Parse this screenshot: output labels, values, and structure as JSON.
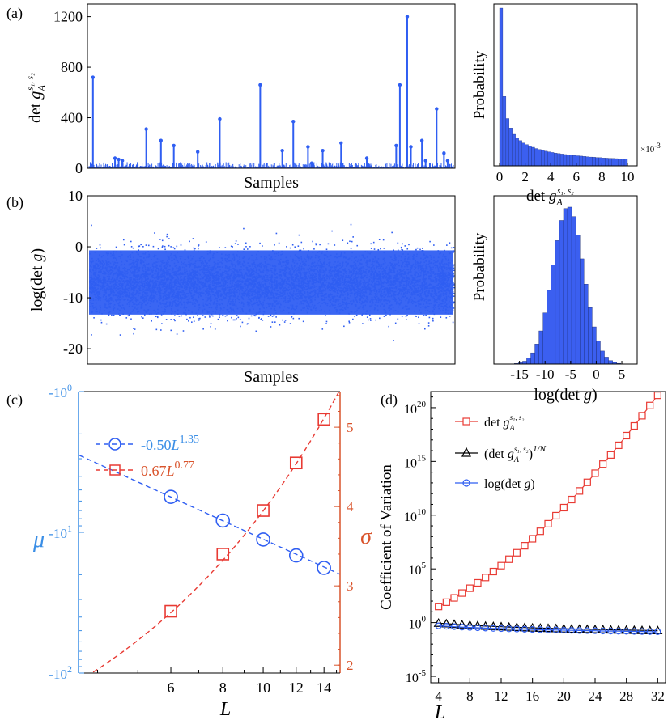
{
  "panels": {
    "a": "(a)",
    "b": "(b)",
    "c": "(c)",
    "d": "(d)"
  },
  "colors": {
    "blue": "#2f5ef2",
    "red": "#e83a33",
    "cyan": "#3a8ee6",
    "orange": "#d9532b",
    "black": "#000000",
    "hist": "#3b5ff0"
  },
  "chart_data": [
    {
      "id": "a_main",
      "type": "scatter",
      "xlabel": "Samples",
      "ylabel": "det g_A^{s1,s2}",
      "ylim": [
        0,
        1300
      ],
      "yticks": [
        0,
        400,
        800,
        1200
      ],
      "x": [
        0.015,
        0.075,
        0.085,
        0.095,
        0.16,
        0.2,
        0.235,
        0.3,
        0.36,
        0.47,
        0.53,
        0.56,
        0.6,
        0.61,
        0.64,
        0.69,
        0.76,
        0.84,
        0.85,
        0.87,
        0.88,
        0.91,
        0.92,
        0.95,
        0.97,
        0.98
      ],
      "values": [
        720,
        80,
        70,
        60,
        310,
        220,
        180,
        130,
        390,
        660,
        140,
        370,
        170,
        40,
        140,
        200,
        80,
        180,
        660,
        1200,
        170,
        220,
        60,
        470,
        120,
        60
      ]
    },
    {
      "id": "a_hist",
      "type": "bar",
      "xlabel": "det g_A^{s1,s2}",
      "ylabel": "Probability",
      "xticks": [
        0,
        2,
        4,
        6,
        8,
        10
      ],
      "xscale_label": "×10",
      "xscale_exp": "-3",
      "xlim": [
        0,
        10
      ],
      "values": [
        1.0,
        0.44,
        0.3,
        0.24,
        0.2,
        0.175,
        0.16,
        0.145,
        0.135,
        0.125,
        0.118,
        0.11,
        0.104,
        0.098,
        0.093,
        0.089,
        0.085,
        0.081,
        0.078,
        0.075,
        0.072,
        0.07,
        0.068,
        0.066,
        0.064,
        0.062,
        0.06,
        0.058,
        0.056,
        0.055,
        0.053,
        0.052,
        0.05,
        0.049,
        0.048,
        0.047,
        0.046,
        0.045,
        0.044,
        0.043
      ]
    },
    {
      "id": "b_main",
      "type": "scatter",
      "xlabel": "Samples",
      "ylabel": "log(det g)",
      "ylim": [
        -23,
        10
      ],
      "yticks": [
        -20,
        -10,
        0,
        10
      ],
      "mean": -7.0,
      "sd": 3.0,
      "n_points": 7000
    },
    {
      "id": "b_hist",
      "type": "bar",
      "xlabel": "log(det g)",
      "ylabel": "Probability",
      "xlim": [
        -20,
        8
      ],
      "xticks": [
        -15,
        -10,
        -5,
        0,
        5
      ],
      "mean": -5.5,
      "sd": 3.0,
      "bin_width": 0.8
    },
    {
      "id": "c",
      "type": "scatter",
      "xlabel": "L",
      "xlim": [
        3.6,
        15.3
      ],
      "xticks": [
        6,
        8,
        10,
        12,
        14
      ],
      "left_axis": {
        "label": "μ",
        "scale": "log-negative",
        "ticks": [
          {
            "base": "-10",
            "exp": "0"
          },
          {
            "base": "-10",
            "exp": "1"
          },
          {
            "base": "-10",
            "exp": "2"
          }
        ]
      },
      "right_axis": {
        "label": "σ",
        "ylim": [
          1.9,
          5.45
        ],
        "ticks": [
          2,
          3,
          4,
          5
        ]
      },
      "series": [
        {
          "name_base": "-0.50",
          "name_var": "L",
          "name_exp": "1.35",
          "x": [
            6,
            8,
            10,
            12,
            14
          ],
          "values": [
            -5.6,
            -8.25,
            -11.25,
            -14.6,
            -17.9
          ],
          "fit_coef": -0.5,
          "fit_exp": 1.35,
          "axis": "left"
        },
        {
          "name_base": "0.67",
          "name_var": "L",
          "name_exp": "0.77",
          "x": [
            6,
            8,
            10,
            12,
            14
          ],
          "values": [
            2.68,
            3.4,
            3.95,
            4.55,
            5.1
          ],
          "fit_coef": 0.67,
          "fit_exp": 0.77,
          "axis": "right"
        }
      ]
    },
    {
      "id": "d",
      "type": "line",
      "xlabel": "L",
      "ylabel": "Coefficient of Variation",
      "xlim": [
        3,
        33
      ],
      "xticks": [
        4,
        8,
        12,
        16,
        20,
        24,
        28,
        32
      ],
      "yscale": "log",
      "ylim_exp": [
        -5.6,
        21.5
      ],
      "yticks": [
        {
          "base": "10",
          "exp": "20",
          "v": 20
        },
        {
          "base": "10",
          "exp": "15",
          "v": 15
        },
        {
          "base": "10",
          "exp": "10",
          "v": 10
        },
        {
          "base": "10",
          "exp": "5",
          "v": 5
        },
        {
          "base": "10",
          "exp": "0",
          "v": 0
        },
        {
          "base": "10",
          "exp": "-5",
          "v": -5
        }
      ],
      "x": [
        4,
        5,
        6,
        7,
        8,
        9,
        10,
        11,
        12,
        13,
        14,
        15,
        16,
        17,
        18,
        19,
        20,
        21,
        22,
        23,
        24,
        25,
        26,
        27,
        28,
        29,
        30,
        31,
        32
      ],
      "series": [
        {
          "name_main": "det g",
          "name_sub": "A",
          "name_sup": "s1, s2",
          "marker": "square",
          "values": [
            1.5,
            1.9,
            2.3,
            2.75,
            3.2,
            3.7,
            4.2,
            4.75,
            5.3,
            5.9,
            6.5,
            7.15,
            7.8,
            8.5,
            9.2,
            9.95,
            10.7,
            11.45,
            12.25,
            13.05,
            13.9,
            14.75,
            15.6,
            16.5,
            17.4,
            18.3,
            19.25,
            20.2,
            21.15
          ]
        },
        {
          "name_main": "(det g",
          "name_sub": "A",
          "name_sup": "s1, s2",
          "name_tail": ")",
          "name_pow": "1/N",
          "marker": "triangle",
          "values": [
            -0.05,
            -0.1,
            -0.15,
            -0.2,
            -0.24,
            -0.28,
            -0.32,
            -0.35,
            -0.38,
            -0.41,
            -0.44,
            -0.46,
            -0.49,
            -0.51,
            -0.53,
            -0.55,
            -0.57,
            -0.59,
            -0.61,
            -0.62,
            -0.64,
            -0.65,
            -0.67,
            -0.68,
            -0.69,
            -0.71,
            -0.72,
            -0.73,
            -0.74
          ]
        },
        {
          "name_main": "log(det g)",
          "marker": "circle",
          "values": [
            -0.3,
            -0.34,
            -0.38,
            -0.42,
            -0.45,
            -0.48,
            -0.51,
            -0.54,
            -0.56,
            -0.58,
            -0.6,
            -0.62,
            -0.64,
            -0.66,
            -0.68,
            -0.69,
            -0.71,
            -0.72,
            -0.74,
            -0.75,
            -0.76,
            -0.78,
            -0.79,
            -0.8,
            -0.81,
            -0.82,
            -0.83,
            -0.84,
            -0.85
          ]
        }
      ]
    }
  ]
}
